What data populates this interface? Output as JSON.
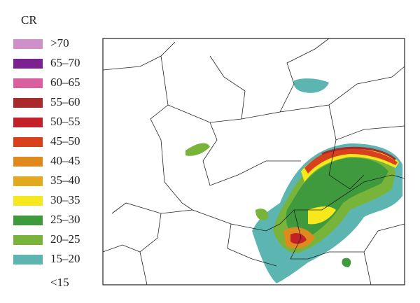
{
  "legend": {
    "title": "CR",
    "items": [
      {
        "label": ">70",
        "color": "#cf8fc8"
      },
      {
        "label": "65–70",
        "color": "#7b2190"
      },
      {
        "label": "60–65",
        "color": "#d9609f"
      },
      {
        "label": "55–60",
        "color": "#a82a2b"
      },
      {
        "label": "50–55",
        "color": "#c4202a"
      },
      {
        "label": "45–50",
        "color": "#d8401e"
      },
      {
        "label": "40–45",
        "color": "#e08a1e"
      },
      {
        "label": "35–40",
        "color": "#e2a81e"
      },
      {
        "label": "30–35",
        "color": "#f7e81e"
      },
      {
        "label": "25–30",
        "color": "#3f9a3e"
      },
      {
        "label": "20–25",
        "color": "#78b43a"
      },
      {
        "label": "15–20",
        "color": "#5cb5b0"
      },
      {
        "label": "<15"
      }
    ]
  }
}
